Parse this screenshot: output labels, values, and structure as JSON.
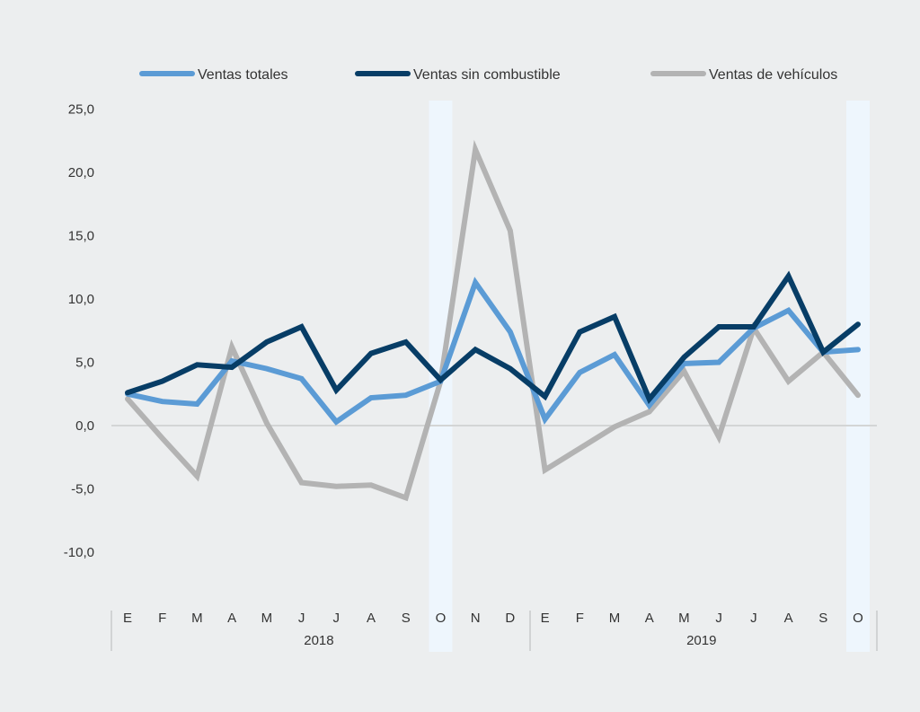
{
  "chart_data": {
    "type": "line",
    "title": "",
    "xlabel": "",
    "ylabel": "",
    "ylim": [
      -12.5,
      25
    ],
    "yticks": [
      "25,0",
      "20,0",
      "15,0",
      "10,0",
      "5,0",
      "0,0",
      "-5,0",
      "-10,0"
    ],
    "ytick_values": [
      25,
      20,
      15,
      10,
      5,
      0,
      -5,
      -10
    ],
    "categories": [
      "E",
      "F",
      "M",
      "A",
      "M",
      "J",
      "J",
      "A",
      "S",
      "O",
      "N",
      "D",
      "E",
      "F",
      "M",
      "A",
      "M",
      "J",
      "J",
      "A",
      "S",
      "O"
    ],
    "year_groups": [
      {
        "label": "2018",
        "start": 0,
        "end": 11
      },
      {
        "label": "2019",
        "start": 12,
        "end": 21
      }
    ],
    "highlight_indices": [
      9,
      21
    ],
    "legend_position": "top",
    "series": [
      {
        "name": "Ventas totales",
        "color": "#5b9bd5",
        "values": [
          2.5,
          1.9,
          1.7,
          5.1,
          4.5,
          3.7,
          0.3,
          2.2,
          2.4,
          3.5,
          11.3,
          7.4,
          0.5,
          4.2,
          5.6,
          1.6,
          4.9,
          5.0,
          7.7,
          9.1,
          5.8,
          6.0
        ]
      },
      {
        "name": "Ventas sin combustible",
        "color": "#073d66",
        "values": [
          2.6,
          3.5,
          4.8,
          4.6,
          6.6,
          7.8,
          2.8,
          5.7,
          6.6,
          3.6,
          6.0,
          4.5,
          2.3,
          7.4,
          8.6,
          2.1,
          5.4,
          7.8,
          7.8,
          11.8,
          5.8,
          8.0
        ]
      },
      {
        "name": "Ventas de vehículos",
        "color": "#b3b3b3",
        "values": [
          2.1,
          -1.0,
          -4.0,
          6.2,
          0.2,
          -4.5,
          -4.8,
          -4.7,
          -5.7,
          3.5,
          21.8,
          15.4,
          -3.5,
          -1.8,
          -0.1,
          1.1,
          4.3,
          -0.9,
          7.7,
          3.5,
          5.8,
          2.4
        ]
      }
    ]
  }
}
